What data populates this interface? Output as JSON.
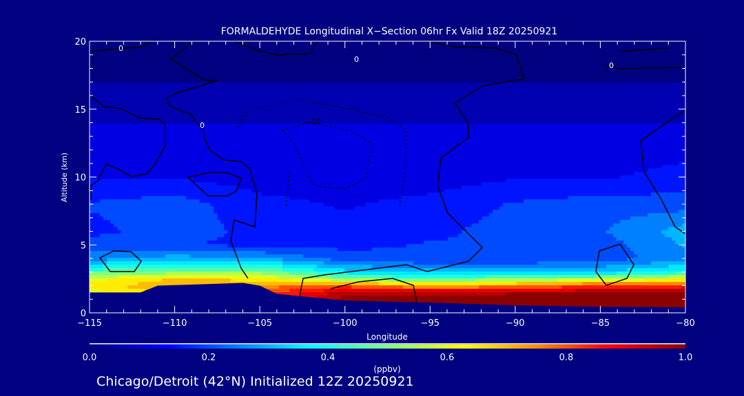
{
  "chart_data": {
    "type": "heatmap",
    "title": "FORMALDEHYDE Longitudinal X−Section 06hr  Fx Valid 18Z 20250921",
    "subtitle": "Chicago/Detroit (42°N) Initialized 12Z 20250921",
    "xlabel": "Longitude",
    "ylabel": "Altitude (km)",
    "xlim": [
      -115,
      -80
    ],
    "ylim": [
      0,
      20
    ],
    "xticks": [
      "−115",
      "−110",
      "−105",
      "−100",
      "−95",
      "−90",
      "−85",
      "−80"
    ],
    "xtick_values": [
      -115,
      -110,
      -105,
      -100,
      -95,
      -90,
      -85,
      -80
    ],
    "yticks": [
      "0",
      "5",
      "10",
      "15",
      "20"
    ],
    "ytick_values": [
      0,
      5,
      10,
      15,
      20
    ],
    "colorbar": {
      "label": "(ppbv)",
      "range": [
        0,
        1
      ],
      "ticks": [
        "0.0",
        "0.2",
        "0.4",
        "0.6",
        "0.8",
        "1.0"
      ],
      "tick_values": [
        0,
        0.2,
        0.4,
        0.6,
        0.8,
        1.0
      ]
    },
    "contour_labels": [
      "0",
      "0",
      "0",
      "0",
      "−10"
    ],
    "grid_lons": [
      -115,
      -110,
      -105,
      -100,
      -95,
      -90,
      -85,
      -80
    ],
    "grid_alts": [
      0,
      1,
      1.5,
      2,
      2.5,
      3,
      4,
      5,
      6,
      8,
      10,
      13,
      13.8,
      14,
      20
    ],
    "values_ppbv": [
      [
        0.6,
        0.7,
        0.8,
        1.0,
        1.0,
        1.0,
        1.0,
        1.0
      ],
      [
        0.6,
        0.7,
        0.8,
        1.0,
        1.0,
        1.0,
        1.0,
        1.0
      ],
      [
        0.6,
        0.7,
        0.8,
        0.95,
        0.95,
        0.97,
        0.98,
        0.98
      ],
      [
        0.65,
        0.72,
        0.75,
        0.8,
        0.7,
        0.75,
        0.82,
        0.85
      ],
      [
        0.6,
        0.68,
        0.65,
        0.5,
        0.45,
        0.5,
        0.55,
        0.6
      ],
      [
        0.45,
        0.5,
        0.5,
        0.35,
        0.3,
        0.3,
        0.32,
        0.4
      ],
      [
        0.25,
        0.3,
        0.28,
        0.2,
        0.18,
        0.18,
        0.2,
        0.25
      ],
      [
        0.2,
        0.18,
        0.16,
        0.16,
        0.18,
        0.18,
        0.2,
        0.28
      ],
      [
        0.16,
        0.2,
        0.16,
        0.14,
        0.16,
        0.2,
        0.22,
        0.3
      ],
      [
        0.18,
        0.2,
        0.14,
        0.12,
        0.14,
        0.18,
        0.2,
        0.2
      ],
      [
        0.12,
        0.12,
        0.1,
        0.1,
        0.1,
        0.12,
        0.12,
        0.14
      ],
      [
        0.09,
        0.09,
        0.08,
        0.08,
        0.08,
        0.09,
        0.09,
        0.1
      ],
      [
        0.08,
        0.08,
        0.08,
        0.08,
        0.08,
        0.08,
        0.08,
        0.08
      ],
      [
        0.03,
        0.03,
        0.03,
        0.03,
        0.03,
        0.03,
        0.03,
        0.03
      ],
      [
        0.02,
        0.02,
        0.02,
        0.02,
        0.02,
        0.02,
        0.02,
        0.02
      ]
    ],
    "terrain_lons": [
      -115,
      -112,
      -111,
      -106,
      -105,
      -104,
      -100,
      -95,
      -90,
      -85,
      -80
    ],
    "terrain_km": [
      1.5,
      1.5,
      2.0,
      2.2,
      2.0,
      1.4,
      0.9,
      0.75,
      0.55,
      0.45,
      0.4
    ]
  },
  "colors": {
    "background": "#000080",
    "terrain": "#000080",
    "contour": "#000000"
  }
}
